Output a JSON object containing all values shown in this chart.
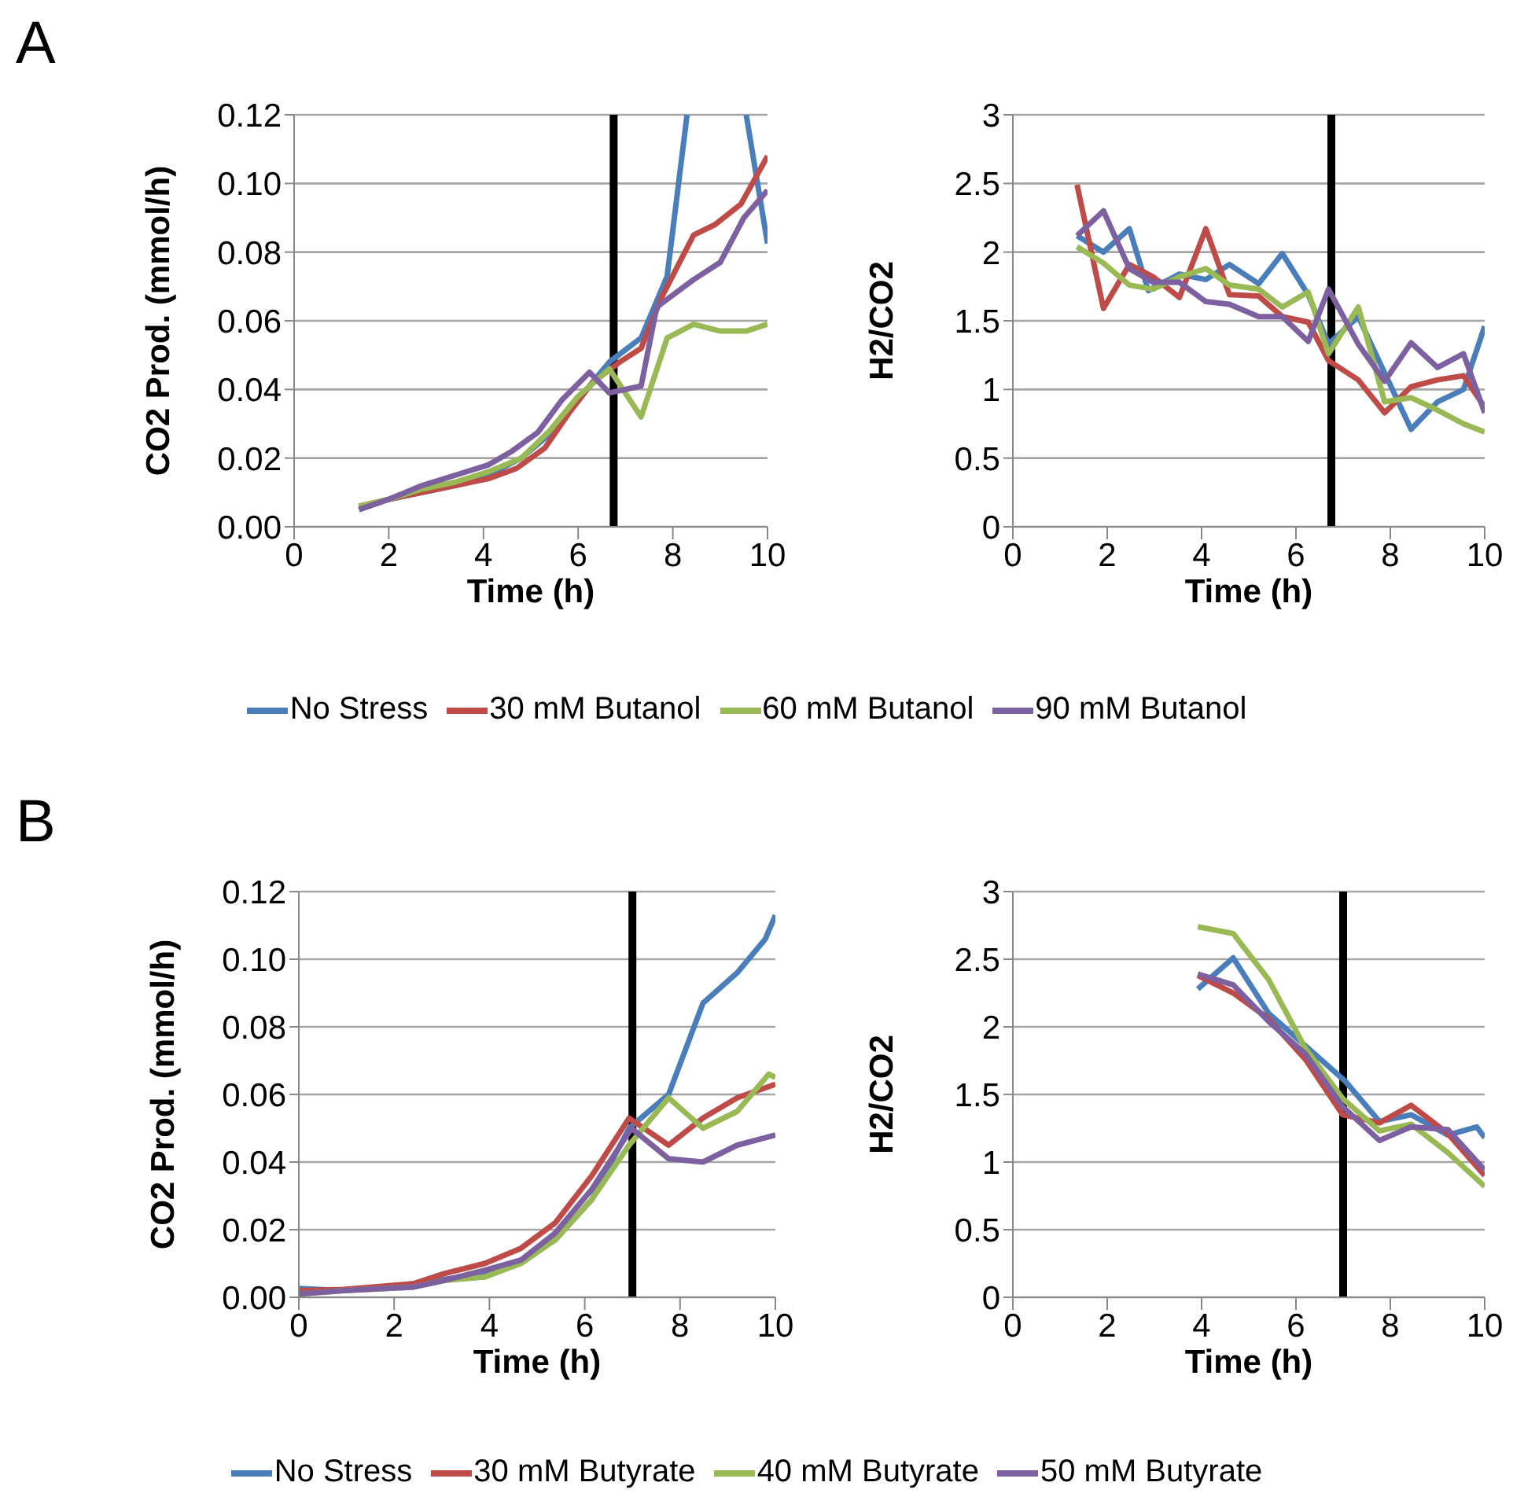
{
  "chart_data": [
    {
      "type": "line",
      "annotations": [
        "A"
      ],
      "xlabel": "Time (h)",
      "ylabel": "CO2 Prod. (mmol/h)",
      "xlim": [
        0,
        10
      ],
      "xticks": [
        0,
        2,
        4,
        6,
        8,
        10
      ],
      "ylim": [
        0,
        0.12
      ],
      "yticks": [
        {
          "value": 0,
          "label": "0.00"
        },
        {
          "value": 0.02,
          "label": "0.02"
        },
        {
          "value": 0.04,
          "label": "0.04"
        },
        {
          "value": 0.06,
          "label": "0.06"
        },
        {
          "value": 0.08,
          "label": "0.08"
        },
        {
          "value": 0.1,
          "label": "0.10"
        },
        {
          "value": 0.12,
          "label": "0.12"
        }
      ],
      "grid": "y",
      "legend": "bottom",
      "marker": "none",
      "line_style": "solid",
      "ref_lines": [
        {
          "axis": "x",
          "value": 6.75,
          "color": "#000000"
        }
      ],
      "series": [
        {
          "name": "No Stress",
          "color": "#4a7ebb",
          "x": [
            1.37,
            2,
            2.7,
            3.4,
            4.1,
            4.8,
            5.4,
            6,
            6.66,
            7.33,
            7.88,
            8.3,
            9,
            9.55,
            10
          ],
          "values": [
            0.005,
            0.008,
            0.01,
            0.012,
            0.015,
            0.02,
            0.027,
            0.037,
            0.048,
            0.055,
            0.073,
            0.12,
            null,
            0.12,
            0.0825
          ]
        },
        {
          "name": "30 mM Butanol",
          "color": "#be4b48",
          "x": [
            1.37,
            2,
            2.7,
            3.4,
            4.1,
            4.7,
            5.3,
            5.8,
            6.3,
            6.88,
            7.33,
            7.77,
            8.44,
            8.89,
            9.44,
            10
          ],
          "values": [
            0.006,
            0.008,
            0.01,
            0.012,
            0.014,
            0.017,
            0.023,
            0.033,
            0.042,
            0.048,
            0.052,
            0.067,
            0.085,
            0.088,
            0.094,
            0.108
          ]
        },
        {
          "name": "60 mM Butanol",
          "color": "#98b954",
          "x": [
            1.37,
            2,
            2.7,
            3.4,
            4.1,
            4.8,
            5.4,
            6,
            6.66,
            7.33,
            7.88,
            8.44,
            9,
            9.55,
            10
          ],
          "values": [
            0.006,
            0.008,
            0.011,
            0.013,
            0.016,
            0.02,
            0.028,
            0.038,
            0.046,
            0.032,
            0.055,
            0.059,
            0.057,
            0.057,
            0.059
          ]
        },
        {
          "name": "90 mM Butanol",
          "color": "#7d60a0",
          "x": [
            1.37,
            2,
            2.7,
            3.4,
            4.1,
            4.6,
            5.15,
            5.66,
            6.24,
            6.66,
            7.33,
            7.66,
            8.44,
            9,
            9.5,
            10
          ],
          "values": [
            0.005,
            0.008,
            0.012,
            0.015,
            0.018,
            0.022,
            0.0275,
            0.037,
            0.045,
            0.039,
            0.041,
            0.064,
            0.072,
            0.077,
            0.09,
            0.098
          ]
        }
      ]
    },
    {
      "type": "line",
      "xlabel": "Time (h)",
      "ylabel": "H2/CO2",
      "xlim": [
        0,
        10
      ],
      "xticks": [
        0,
        2,
        4,
        6,
        8,
        10
      ],
      "ylim": [
        0,
        3
      ],
      "yticks": [
        0,
        0.5,
        1,
        1.5,
        2,
        2.5,
        3
      ],
      "grid": "y",
      "marker": "none",
      "line_style": "solid",
      "ref_lines": [
        {
          "axis": "x",
          "value": 6.75,
          "color": "#000000"
        }
      ],
      "series": [
        {
          "color": "#4a7ebb",
          "x": [
            1.36,
            1.92,
            2.47,
            2.87,
            3.53,
            4.09,
            4.59,
            5.21,
            5.71,
            6.26,
            6.69,
            7.32,
            7.88,
            8.44,
            9,
            9.55,
            10
          ],
          "values": [
            2.12,
            2,
            2.17,
            1.72,
            1.84,
            1.8,
            1.91,
            1.77,
            1.99,
            1.69,
            1.33,
            1.53,
            1.12,
            0.71,
            0.91,
            1,
            1.46
          ]
        },
        {
          "color": "#be4b48",
          "x": [
            1.36,
            1.92,
            2.47,
            2.97,
            3.53,
            4.09,
            4.59,
            5.21,
            5.71,
            6.26,
            6.69,
            7.32,
            7.88,
            8.44,
            9,
            9.55,
            10
          ],
          "values": [
            2.49,
            1.59,
            1.91,
            1.82,
            1.67,
            2.17,
            1.69,
            1.68,
            1.53,
            1.49,
            1.21,
            1.07,
            0.83,
            1.02,
            1.07,
            1.1,
            0.87
          ]
        },
        {
          "color": "#98b954",
          "x": [
            1.36,
            1.92,
            2.47,
            2.97,
            3.53,
            4.09,
            4.59,
            5.21,
            5.71,
            6.26,
            6.69,
            7.32,
            7.88,
            8.44,
            9,
            9.55,
            10
          ],
          "values": [
            2.04,
            1.92,
            1.76,
            1.73,
            1.82,
            1.88,
            1.76,
            1.73,
            1.6,
            1.71,
            1.26,
            1.6,
            0.91,
            0.94,
            0.85,
            0.75,
            0.69
          ]
        },
        {
          "color": "#7d60a0",
          "x": [
            1.36,
            1.92,
            2.47,
            2.97,
            3.53,
            4.09,
            4.59,
            5.21,
            5.71,
            6.26,
            6.69,
            7.32,
            7.88,
            8.44,
            9,
            9.55,
            10
          ],
          "values": [
            2.12,
            2.3,
            1.88,
            1.78,
            1.78,
            1.64,
            1.62,
            1.53,
            1.53,
            1.35,
            1.73,
            1.33,
            1.06,
            1.34,
            1.16,
            1.26,
            0.83
          ]
        }
      ]
    },
    {
      "type": "line",
      "annotations": [
        "B"
      ],
      "xlabel": "Time (h)",
      "ylabel": "CO2 Prod. (mmol/h)",
      "xlim": [
        0,
        10
      ],
      "xticks": [
        0,
        2,
        4,
        6,
        8,
        10
      ],
      "ylim": [
        0,
        0.12
      ],
      "yticks": [
        {
          "value": 0,
          "label": "0.00"
        },
        {
          "value": 0.02,
          "label": "0.02"
        },
        {
          "value": 0.04,
          "label": "0.04"
        },
        {
          "value": 0.06,
          "label": "0.06"
        },
        {
          "value": 0.08,
          "label": "0.08"
        },
        {
          "value": 0.1,
          "label": "0.10"
        },
        {
          "value": 0.12,
          "label": "0.12"
        }
      ],
      "grid": "y",
      "legend": "bottom",
      "marker": "none",
      "line_style": "solid",
      "ref_lines": [
        {
          "axis": "x",
          "value": 7,
          "color": "#000000"
        }
      ],
      "series": [
        {
          "name": "No Stress",
          "color": "#4a7ebb",
          "x": [
            0,
            0.94,
            2.4,
            3.9,
            4.66,
            5.38,
            6.15,
            6.93,
            7.76,
            8.48,
            9.2,
            9.79,
            10
          ],
          "values": [
            0.0026,
            0.002,
            0.004,
            0.007,
            0.011,
            0.017,
            0.029,
            0.05,
            0.06,
            0.087,
            0.096,
            0.106,
            0.113
          ]
        },
        {
          "name": "30 mM Butyrate",
          "color": "#be4b48",
          "x": [
            0,
            0.94,
            2.4,
            3.05,
            3.9,
            4.66,
            5.38,
            6.15,
            6.93,
            7.76,
            8.48,
            9.2,
            10
          ],
          "values": [
            0.002,
            0.0023,
            0.004,
            0.007,
            0.01,
            0.0145,
            0.022,
            0.036,
            0.053,
            0.045,
            0.053,
            0.059,
            0.063
          ]
        },
        {
          "name": "40 mM Butyrate",
          "color": "#98b954",
          "x": [
            0,
            0.94,
            2.4,
            3.05,
            3.9,
            4.66,
            5.38,
            6.15,
            6.93,
            7.76,
            8.48,
            9.2,
            9.86,
            10
          ],
          "values": [
            0.001,
            0.002,
            0.003,
            0.005,
            0.006,
            0.01,
            0.017,
            0.029,
            0.045,
            0.059,
            0.05,
            0.055,
            0.066,
            0.065
          ]
        },
        {
          "name": "50 mM Butyrate",
          "color": "#7d60a0",
          "x": [
            0,
            0.94,
            2.4,
            3.05,
            3.9,
            4.66,
            5.38,
            6.15,
            6.98,
            7.76,
            8.48,
            9.2,
            10
          ],
          "values": [
            0.001,
            0.002,
            0.003,
            0.005,
            0.008,
            0.011,
            0.019,
            0.032,
            0.05,
            0.041,
            0.04,
            0.045,
            0.048
          ]
        }
      ]
    },
    {
      "type": "line",
      "xlabel": "Time (h)",
      "ylabel": "H2/CO2",
      "xlim": [
        0,
        10
      ],
      "xticks": [
        0,
        2,
        4,
        6,
        8,
        10
      ],
      "ylim": [
        0,
        3
      ],
      "yticks": [
        0,
        0.5,
        1,
        1.5,
        2,
        2.5,
        3
      ],
      "grid": "y",
      "marker": "none",
      "line_style": "solid",
      "ref_lines": [
        {
          "axis": "x",
          "value": 7,
          "color": "#000000"
        }
      ],
      "series": [
        {
          "color": "#4a7ebb",
          "x": [
            3.92,
            4.67,
            5.42,
            6.2,
            7.04,
            7.77,
            8.44,
            9.22,
            9.83,
            10
          ],
          "values": [
            2.28,
            2.51,
            2.1,
            1.86,
            1.6,
            1.3,
            1.35,
            1.2,
            1.26,
            1.18
          ]
        },
        {
          "color": "#be4b48",
          "x": [
            3.92,
            4.67,
            5.42,
            6.2,
            6.99,
            7.77,
            8.44,
            9.22,
            10
          ],
          "values": [
            2.38,
            2.25,
            2.06,
            1.76,
            1.35,
            1.29,
            1.42,
            1.21,
            0.9
          ]
        },
        {
          "color": "#98b954",
          "x": [
            3.92,
            4.67,
            5.42,
            6.2,
            6.99,
            7.77,
            8.44,
            9.22,
            10
          ],
          "values": [
            2.74,
            2.69,
            2.35,
            1.84,
            1.47,
            1.23,
            1.28,
            1.07,
            0.82
          ]
        },
        {
          "color": "#7d60a0",
          "x": [
            3.92,
            4.67,
            5.42,
            6.2,
            6.99,
            7.77,
            8.44,
            9.22,
            10
          ],
          "values": [
            2.39,
            2.31,
            2.04,
            1.8,
            1.41,
            1.16,
            1.26,
            1.24,
            0.94
          ]
        }
      ]
    }
  ]
}
